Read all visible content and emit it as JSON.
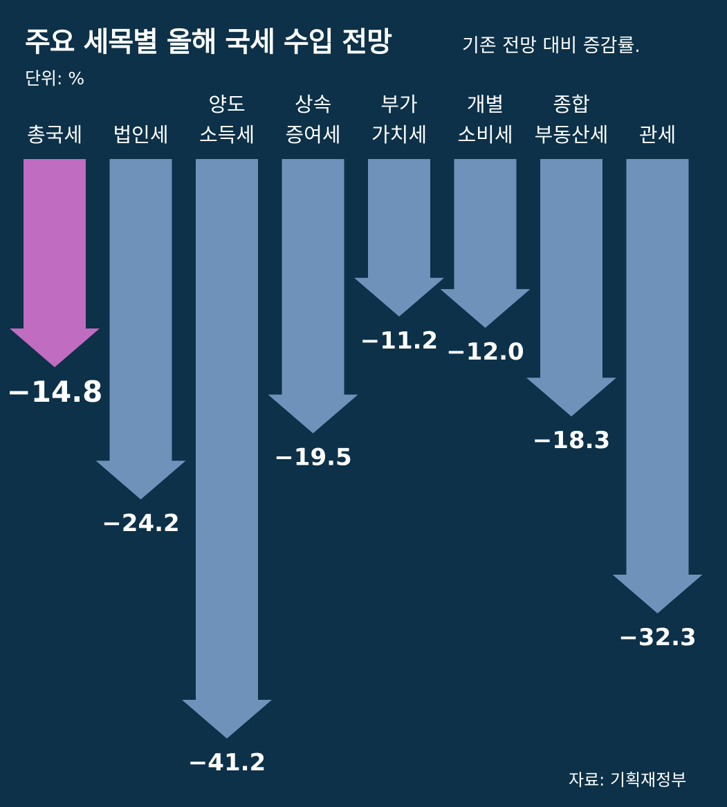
{
  "title": "주요 세목별 올해 국세 수입 전망",
  "subtitle": "기존 전망 대비 증감률.",
  "unit": "단위: %",
  "source": "자료: 기획재정부",
  "colors": {
    "background": "#0c3148",
    "total": "#c06cc0",
    "bar": "#6f92bb"
  },
  "chart_data": {
    "type": "bar",
    "title": "주요 세목별 올해 국세 수입 전망",
    "subtitle": "기존 전망 대비 증감률.",
    "ylabel": "단위: %",
    "categories": [
      "총국세",
      "법인세",
      "양도 소득세",
      "상속 증여세",
      "부가 가치세",
      "개별 소비세",
      "종합 부동산세",
      "관세"
    ],
    "category_lines": [
      [
        "총국세"
      ],
      [
        "법인세"
      ],
      [
        "양도",
        "소득세"
      ],
      [
        "상속",
        "증여세"
      ],
      [
        "부가",
        "가치세"
      ],
      [
        "개별",
        "소비세"
      ],
      [
        "종합",
        "부동산세"
      ],
      [
        "관세"
      ]
    ],
    "values": [
      -14.8,
      -24.2,
      -41.2,
      -19.5,
      -11.2,
      -12.0,
      -18.3,
      -32.3
    ],
    "value_labels": [
      "−14.8",
      "−24.2",
      "−41.2",
      "−19.5",
      "−11.2",
      "−12.0",
      "−18.3",
      "−32.3"
    ],
    "highlight_index": 0,
    "ylim": [
      -41.2,
      0
    ],
    "grid": false,
    "legend": "none"
  }
}
